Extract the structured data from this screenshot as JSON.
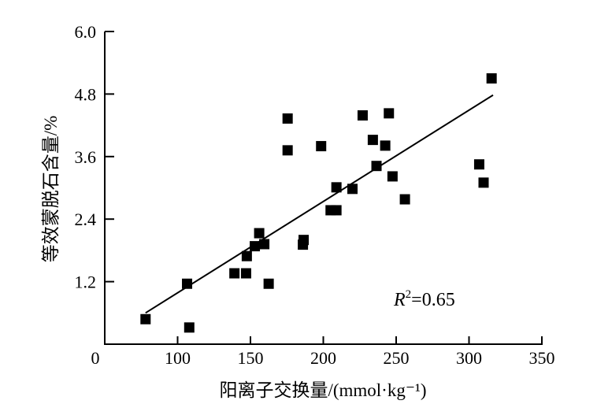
{
  "chart_data": {
    "type": "scatter",
    "title": "",
    "xlabel": "阳离子交换量/(mmol·kg⁻¹)",
    "ylabel": "等效蒙脱石含量/%",
    "xlim": [
      50,
      350
    ],
    "ylim": [
      0,
      6.0
    ],
    "origin_label": "0",
    "xticks": [
      100,
      150,
      200,
      250,
      300,
      350
    ],
    "xtick_labels": [
      "100",
      "150",
      "200",
      "250",
      "300",
      "350"
    ],
    "yticks": [
      1.2,
      2.4,
      3.6,
      4.8,
      6.0
    ],
    "ytick_labels": [
      "1.2",
      "2.4",
      "3.6",
      "4.8",
      "6.0"
    ],
    "grid": false,
    "marker": "square",
    "color": "#000000",
    "points": [
      [
        78,
        0.48
      ],
      [
        106.5,
        1.16
      ],
      [
        108,
        0.32
      ],
      [
        139,
        1.36
      ],
      [
        147,
        1.36
      ],
      [
        147.5,
        1.69
      ],
      [
        153,
        1.88
      ],
      [
        156,
        2.13
      ],
      [
        159.5,
        1.92
      ],
      [
        162.5,
        1.16
      ],
      [
        175.5,
        3.72
      ],
      [
        175.5,
        4.33
      ],
      [
        186,
        1.91
      ],
      [
        186.5,
        2.0
      ],
      [
        198.5,
        3.8
      ],
      [
        205,
        2.57
      ],
      [
        209,
        2.57
      ],
      [
        209,
        3.01
      ],
      [
        220,
        2.98
      ],
      [
        227,
        4.39
      ],
      [
        234,
        3.92
      ],
      [
        236.5,
        3.42
      ],
      [
        242.5,
        3.81
      ],
      [
        245,
        4.43
      ],
      [
        247.5,
        3.22
      ],
      [
        256,
        2.78
      ],
      [
        307,
        3.45
      ],
      [
        310,
        3.1
      ],
      [
        315.5,
        5.1
      ]
    ],
    "trendline": {
      "x": [
        78,
        316.5
      ],
      "y": [
        0.6,
        4.78
      ]
    },
    "annotation": {
      "r_label": "R",
      "r_sup": "2",
      "r_value": "=0.65"
    }
  }
}
